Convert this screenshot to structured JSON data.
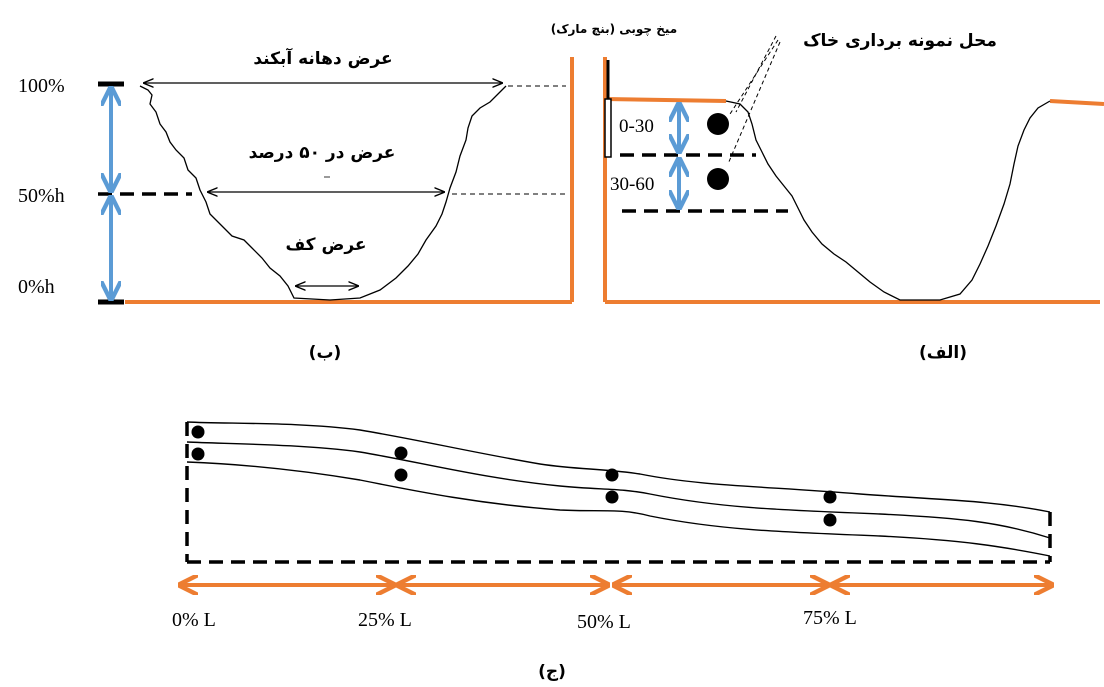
{
  "panel_b": {
    "caption": "(ب)",
    "labels": {
      "top_width": "عرض دهانه آبکند",
      "mid_width": "عرض در ۵۰ درصد",
      "bottom_width": "عرض کف"
    },
    "levels": [
      "100%",
      "50%h",
      "0%h"
    ]
  },
  "panel_alef": {
    "caption": "(الف)",
    "benchmark": "میخ چوبی (بنچ مارک)",
    "sample_location": "محل نمونه برداری خاک",
    "depths": [
      "0-30",
      "30-60"
    ]
  },
  "panel_j": {
    "caption": "(ج)",
    "positions": [
      "0% L",
      "25% L",
      "50% L",
      "75% L"
    ]
  },
  "colors": {
    "orange": "#ED7D31",
    "blue": "#5B9BD5",
    "black": "#000000"
  }
}
